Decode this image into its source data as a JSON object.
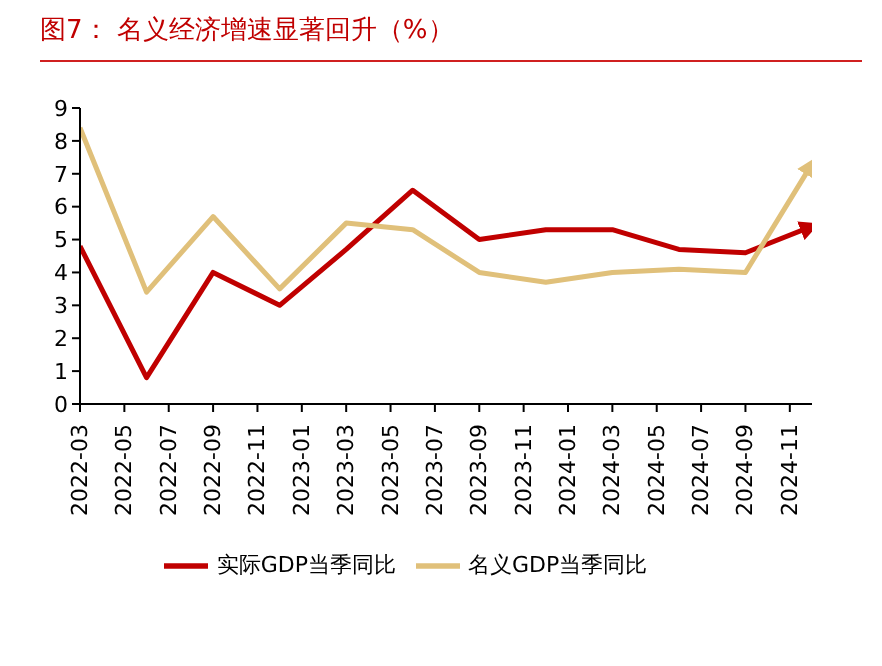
{
  "chart_data": {
    "type": "line",
    "title": "图7：  名义经济增速显著回升（%）",
    "x": [
      "2022-03",
      "2022-06",
      "2022-09",
      "2022-12",
      "2023-03",
      "2023-06",
      "2023-09",
      "2023-12",
      "2024-03",
      "2024-06",
      "2024-09",
      "2024-12"
    ],
    "series": [
      {
        "name": "实际GDP当季同比",
        "color": "#c00000",
        "values": [
          4.8,
          0.8,
          4.0,
          3.0,
          4.7,
          6.5,
          5.0,
          5.3,
          5.3,
          4.7,
          4.6,
          5.4
        ]
      },
      {
        "name": "名义GDP当季同比",
        "color": "#e0c07a",
        "values": [
          8.4,
          3.4,
          5.7,
          3.5,
          5.5,
          5.3,
          4.0,
          3.7,
          4.0,
          4.1,
          4.0,
          7.3
        ]
      }
    ],
    "xlim": [
      "2022-03",
      "2024-12"
    ],
    "xticks": [
      "2022-03",
      "2022-05",
      "2022-07",
      "2022-09",
      "2022-11",
      "2023-01",
      "2023-03",
      "2023-05",
      "2023-07",
      "2023-09",
      "2023-11",
      "2024-01",
      "2024-03",
      "2024-05",
      "2024-07",
      "2024-09",
      "2024-11"
    ],
    "ylim": [
      0,
      9
    ],
    "yticks": [
      0,
      1,
      2,
      3,
      4,
      5,
      6,
      7,
      8,
      9
    ],
    "grid": false,
    "legend": "bottom",
    "marker": "none",
    "line_style": "solid"
  }
}
